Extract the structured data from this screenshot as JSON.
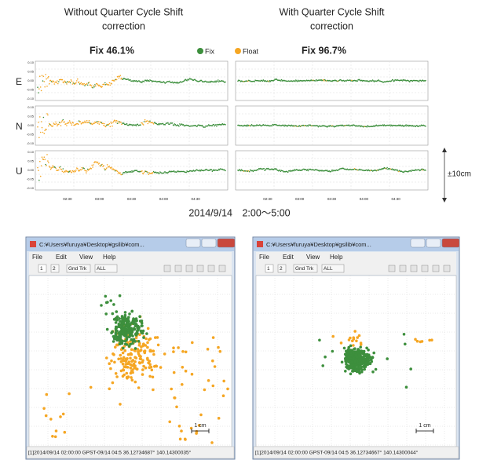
{
  "top": {
    "panels": [
      {
        "title_lines": [
          "Without Quarter Cycle Shift",
          "correction"
        ],
        "fix_ratio": "Fix 46.1%"
      },
      {
        "title_lines": [
          "With Quarter Cycle Shift",
          "correction"
        ],
        "fix_ratio": "Fix 96.7%"
      }
    ],
    "legend": [
      "Fix",
      "Float"
    ],
    "rows": [
      "E",
      "N",
      "U"
    ],
    "yticks": [
      "0.10",
      "0.05",
      "0.00",
      "-0.05",
      "-0.10"
    ],
    "time_labels": [
      "02:30",
      "03:00",
      "03:30",
      "04:00",
      "04:30"
    ],
    "scale": "±10cm",
    "date": "2014/9/14　2:00～5:00"
  },
  "windows": [
    {
      "title": "C:¥Users¥furuya¥Desktop¥gsilib¥com...",
      "menu": [
        "File",
        "Edit",
        "View",
        "Help"
      ],
      "toolbar": [
        "1",
        "2",
        "Gnd Trk",
        "ALL"
      ],
      "scale": "1 cm",
      "status": "[1]2014/09/14 02:00:00 GPST-09/14 04:5  36.12734687°  140.14300035°"
    },
    {
      "title": "C:¥Users¥furuya¥Desktop¥gsilib¥com...",
      "menu": [
        "File",
        "Edit",
        "View",
        "Help"
      ],
      "toolbar": [
        "1",
        "2",
        "Gnd Trk",
        "ALL"
      ],
      "scale": "1 cm",
      "status": "[1]2014/09/14 02:00:00 GPST-09/14 04:5  36.12734667°  140.14300044°"
    }
  ]
}
